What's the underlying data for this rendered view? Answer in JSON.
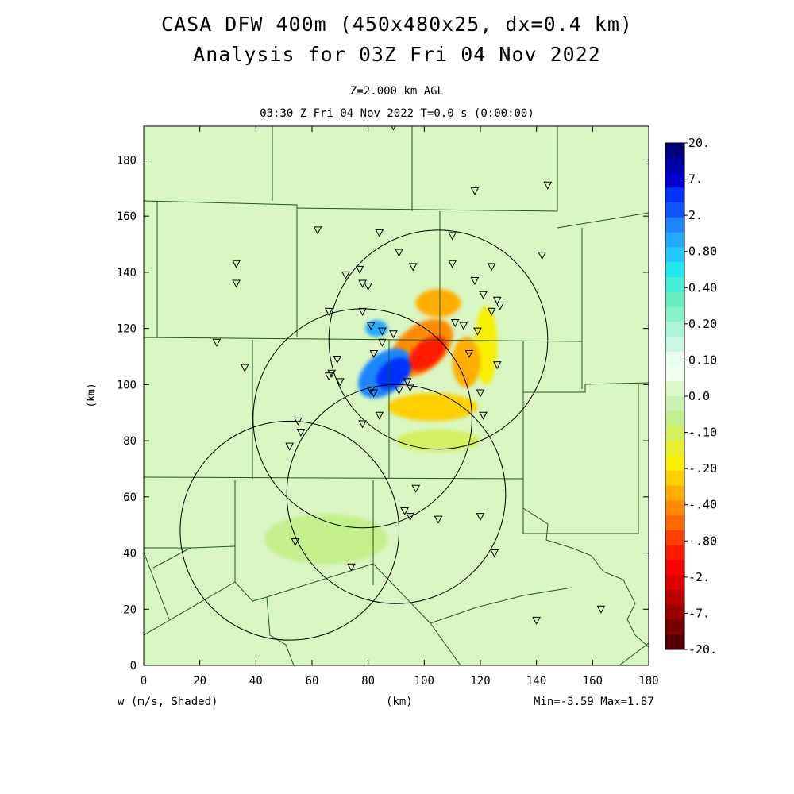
{
  "title_line1": "CASA DFW 400m (450x480x25, dx=0.4 km)",
  "title_line2": "Analysis for 03Z Fri 04 Nov 2022",
  "subtitle_level": "Z=2.000 km AGL",
  "subtitle_time": "03:30 Z Fri 04 Nov 2022    T=0.0 s (0:00:00)",
  "footer": {
    "field_label": "w (m/s, Shaded)",
    "xaxis_unit": "(km)",
    "minmax": "Min=-3.59 Max=1.87"
  },
  "chart_data": {
    "type": "heatmap",
    "field": "vertical velocity w",
    "xlabel": "(km)",
    "ylabel": "(km)",
    "xlim": [
      0,
      180
    ],
    "ylim": [
      0,
      192
    ],
    "xticks": [
      0,
      20,
      40,
      60,
      80,
      100,
      120,
      140,
      160,
      180
    ],
    "yticks": [
      0,
      20,
      40,
      60,
      80,
      100,
      120,
      140,
      160,
      180
    ],
    "min": -3.59,
    "max": 1.87,
    "colorbar": {
      "labels": [
        "20.",
        "7.",
        "2.",
        "0.80",
        "0.40",
        "0.20",
        "0.10",
        "0.0",
        "-.10",
        "-.20",
        "-.40",
        "-.80",
        "-2.",
        "-7.",
        "-20."
      ],
      "colors": [
        "#00007a",
        "#0000a8",
        "#0000d0",
        "#0033ff",
        "#1155ff",
        "#1d86ff",
        "#22aaff",
        "#22c8ff",
        "#22e8f0",
        "#44eed8",
        "#66f0c4",
        "#88f2c8",
        "#aaf4d8",
        "#c8f8e4",
        "#e8fff0",
        "#f0fff0",
        "#d8f8c8",
        "#cdf2b0",
        "#c4f08c",
        "#d4f060",
        "#e8f030",
        "#f8f000",
        "#ffd000",
        "#ffae00",
        "#ff8c00",
        "#ff6a00",
        "#ff4000",
        "#ff1a00",
        "#ff0000",
        "#dd0000",
        "#bb0000",
        "#990000",
        "#770000",
        "#550000"
      ]
    },
    "radar_rings": [
      {
        "center": [
          105,
          116
        ],
        "radius": 39
      },
      {
        "center": [
          78,
          88
        ],
        "radius": 39
      },
      {
        "center": [
          90,
          61
        ],
        "radius": 39
      },
      {
        "center": [
          52,
          48
        ],
        "radius": 39
      }
    ],
    "stations": [
      [
        89,
        192
      ],
      [
        118,
        169
      ],
      [
        144,
        171
      ],
      [
        62,
        155
      ],
      [
        84,
        154
      ],
      [
        110,
        153
      ],
      [
        142,
        146
      ],
      [
        33,
        143
      ],
      [
        91,
        147
      ],
      [
        96,
        142
      ],
      [
        110,
        143
      ],
      [
        124,
        142
      ],
      [
        33,
        136
      ],
      [
        72,
        139
      ],
      [
        77,
        141
      ],
      [
        78,
        136
      ],
      [
        80,
        135
      ],
      [
        118,
        137
      ],
      [
        121,
        132
      ],
      [
        126,
        130
      ],
      [
        127,
        128
      ],
      [
        66,
        126
      ],
      [
        78,
        126
      ],
      [
        124,
        126
      ],
      [
        81,
        121
      ],
      [
        85,
        119
      ],
      [
        89,
        118
      ],
      [
        111,
        122
      ],
      [
        114,
        121
      ],
      [
        119,
        119
      ],
      [
        26,
        115
      ],
      [
        85,
        115
      ],
      [
        82,
        111
      ],
      [
        116,
        111
      ],
      [
        69,
        109
      ],
      [
        36,
        106
      ],
      [
        67,
        104
      ],
      [
        66,
        103
      ],
      [
        70,
        101
      ],
      [
        126,
        107
      ],
      [
        94,
        101
      ],
      [
        95,
        99
      ],
      [
        91,
        98
      ],
      [
        81,
        98
      ],
      [
        82,
        97
      ],
      [
        120,
        97
      ],
      [
        121,
        89
      ],
      [
        84,
        89
      ],
      [
        78,
        86
      ],
      [
        55,
        87
      ],
      [
        56,
        83
      ],
      [
        52,
        78
      ],
      [
        97,
        63
      ],
      [
        93,
        55
      ],
      [
        95,
        53
      ],
      [
        105,
        52
      ],
      [
        120,
        53
      ],
      [
        54,
        44
      ],
      [
        125,
        40
      ],
      [
        74,
        35
      ],
      [
        140,
        16
      ],
      [
        163,
        20
      ]
    ],
    "cells": [
      {
        "x": 101,
        "y": 111,
        "rx": 8,
        "ry": 4.5,
        "rot": 40,
        "value": -3.59
      },
      {
        "x": 99,
        "y": 113,
        "rx": 13,
        "ry": 8,
        "rot": 40,
        "value": -0.8
      },
      {
        "x": 105,
        "y": 129,
        "rx": 8,
        "ry": 5,
        "rot": 0,
        "value": -0.7
      },
      {
        "x": 115,
        "y": 108,
        "rx": 5,
        "ry": 9,
        "rot": 0,
        "value": -0.7
      },
      {
        "x": 89,
        "y": 104,
        "rx": 7,
        "ry": 4.5,
        "rot": 40,
        "value": 1.87
      },
      {
        "x": 86,
        "y": 104,
        "rx": 11,
        "ry": 7,
        "rot": 40,
        "value": 0.7
      },
      {
        "x": 83,
        "y": 120,
        "rx": 4,
        "ry": 3,
        "rot": 0,
        "value": 0.5
      },
      {
        "x": 103,
        "y": 92,
        "rx": 16,
        "ry": 5,
        "rot": 0,
        "value": -0.45
      },
      {
        "x": 122,
        "y": 114,
        "rx": 4,
        "ry": 14,
        "rot": 0,
        "value": -0.3
      },
      {
        "x": 105,
        "y": 80,
        "rx": 15,
        "ry": 4,
        "rot": 0,
        "value": -0.15
      },
      {
        "x": 65,
        "y": 45,
        "rx": 22,
        "ry": 9,
        "rot": 0,
        "value": -0.12
      }
    ]
  }
}
